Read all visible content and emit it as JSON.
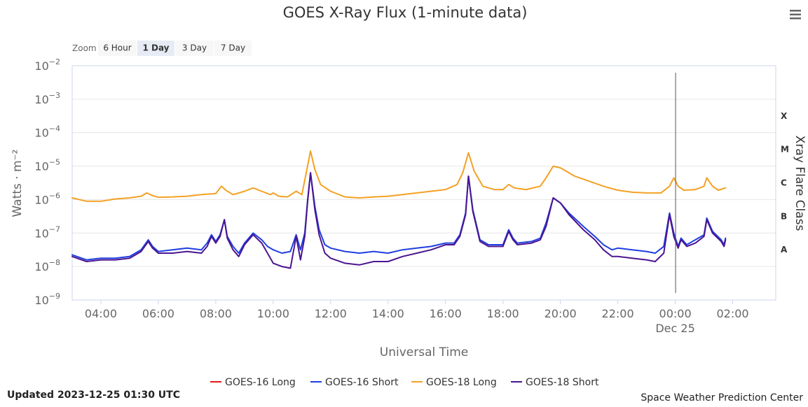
{
  "menu_icon": "hamburger-menu-icon",
  "zoom": {
    "label": "Zoom",
    "buttons": [
      "6 Hour",
      "1 Day",
      "3 Day",
      "7 Day"
    ],
    "active": "1 Day"
  },
  "footer": {
    "updated": "Updated 2023-12-25 01:30 UTC",
    "credit": "Space Weather Prediction Center"
  },
  "chart_data": {
    "type": "line",
    "title": "GOES X-Ray Flux (1-minute data)",
    "xlabel": "Universal Time",
    "ylabel": "Watts · m⁻²",
    "y2label": "Xray Flare Class",
    "yscale": "log",
    "xlim_hours": [
      3,
      27.5
    ],
    "ylim_exponents": [
      -9,
      -2
    ],
    "y_ticks": [
      {
        "exp": -2,
        "base": "10",
        "sup": "−2"
      },
      {
        "exp": -3,
        "base": "10",
        "sup": "−3"
      },
      {
        "exp": -4,
        "base": "10",
        "sup": "−4"
      },
      {
        "exp": -5,
        "base": "10",
        "sup": "−5"
      },
      {
        "exp": -6,
        "base": "10",
        "sup": "−6"
      },
      {
        "exp": -7,
        "base": "10",
        "sup": "−7"
      },
      {
        "exp": -8,
        "base": "10",
        "sup": "−8"
      },
      {
        "exp": -9,
        "base": "10",
        "sup": "−9"
      }
    ],
    "x_ticks": [
      {
        "hour": 4,
        "label": "04:00"
      },
      {
        "hour": 6,
        "label": "06:00"
      },
      {
        "hour": 8,
        "label": "08:00"
      },
      {
        "hour": 10,
        "label": "10:00"
      },
      {
        "hour": 12,
        "label": "12:00"
      },
      {
        "hour": 14,
        "label": "14:00"
      },
      {
        "hour": 16,
        "label": "16:00"
      },
      {
        "hour": 18,
        "label": "18:00"
      },
      {
        "hour": 20,
        "label": "20:00"
      },
      {
        "hour": 22,
        "label": "22:00"
      },
      {
        "hour": 24,
        "label": "00:00",
        "sublabel": "Dec 25"
      },
      {
        "hour": 26,
        "label": "02:00"
      }
    ],
    "flare_classes": [
      {
        "label": "X",
        "exp": -3.5
      },
      {
        "label": "M",
        "exp": -4.5
      },
      {
        "label": "C",
        "exp": -5.5
      },
      {
        "label": "B",
        "exp": -6.5
      },
      {
        "label": "A",
        "exp": -7.5
      }
    ],
    "day_boundary_hour": 24,
    "series": [
      {
        "name": "GOES-16 Long",
        "color": "#e41a1c",
        "points": []
      },
      {
        "name": "GOES-16 Short",
        "color": "#1f3fe0",
        "points": [
          [
            3,
            -7.65
          ],
          [
            3.5,
            -7.8
          ],
          [
            4,
            -7.75
          ],
          [
            4.5,
            -7.75
          ],
          [
            5,
            -7.7
          ],
          [
            5.4,
            -7.5
          ],
          [
            5.65,
            -7.2
          ],
          [
            5.8,
            -7.4
          ],
          [
            6,
            -7.55
          ],
          [
            6.5,
            -7.5
          ],
          [
            7,
            -7.45
          ],
          [
            7.5,
            -7.5
          ],
          [
            7.7,
            -7.3
          ],
          [
            7.85,
            -7.05
          ],
          [
            8,
            -7.25
          ],
          [
            8.15,
            -7.05
          ],
          [
            8.3,
            -6.6
          ],
          [
            8.4,
            -7.1
          ],
          [
            8.6,
            -7.4
          ],
          [
            8.8,
            -7.6
          ],
          [
            9,
            -7.3
          ],
          [
            9.3,
            -7.0
          ],
          [
            9.6,
            -7.2
          ],
          [
            9.8,
            -7.4
          ],
          [
            10,
            -7.5
          ],
          [
            10.3,
            -7.6
          ],
          [
            10.6,
            -7.55
          ],
          [
            10.8,
            -7.05
          ],
          [
            10.95,
            -7.5
          ],
          [
            11.1,
            -7.0
          ],
          [
            11.2,
            -6.0
          ],
          [
            11.3,
            -5.2
          ],
          [
            11.45,
            -6.2
          ],
          [
            11.6,
            -6.9
          ],
          [
            11.8,
            -7.35
          ],
          [
            12,
            -7.45
          ],
          [
            12.5,
            -7.55
          ],
          [
            13,
            -7.6
          ],
          [
            13.5,
            -7.55
          ],
          [
            14,
            -7.6
          ],
          [
            14.5,
            -7.5
          ],
          [
            15,
            -7.45
          ],
          [
            15.5,
            -7.4
          ],
          [
            16,
            -7.3
          ],
          [
            16.3,
            -7.3
          ],
          [
            16.5,
            -7.05
          ],
          [
            16.7,
            -6.4
          ],
          [
            16.8,
            -5.3
          ],
          [
            16.95,
            -6.3
          ],
          [
            17.2,
            -7.2
          ],
          [
            17.5,
            -7.35
          ],
          [
            18,
            -7.35
          ],
          [
            18.2,
            -6.9
          ],
          [
            18.35,
            -7.15
          ],
          [
            18.5,
            -7.3
          ],
          [
            19,
            -7.25
          ],
          [
            19.3,
            -7.15
          ],
          [
            19.5,
            -6.7
          ],
          [
            19.75,
            -5.95
          ],
          [
            20,
            -6.1
          ],
          [
            20.3,
            -6.4
          ],
          [
            20.8,
            -6.8
          ],
          [
            21.2,
            -7.1
          ],
          [
            21.5,
            -7.35
          ],
          [
            21.8,
            -7.5
          ],
          [
            22,
            -7.45
          ],
          [
            22.5,
            -7.5
          ],
          [
            23,
            -7.55
          ],
          [
            23.3,
            -7.6
          ],
          [
            23.6,
            -7.4
          ],
          [
            23.8,
            -6.4
          ],
          [
            23.95,
            -7.0
          ],
          [
            24.1,
            -7.4
          ],
          [
            24.2,
            -7.15
          ],
          [
            24.4,
            -7.35
          ],
          [
            24.7,
            -7.2
          ],
          [
            25,
            -7.05
          ],
          [
            25.1,
            -6.55
          ],
          [
            25.3,
            -6.95
          ],
          [
            25.6,
            -7.2
          ],
          [
            25.7,
            -7.35
          ],
          [
            25.75,
            -7.15
          ]
        ]
      },
      {
        "name": "GOES-18 Long",
        "color": "#f4a124",
        "points": [
          [
            3,
            -5.95
          ],
          [
            3.5,
            -6.05
          ],
          [
            4,
            -6.05
          ],
          [
            4.5,
            -5.98
          ],
          [
            5,
            -5.95
          ],
          [
            5.4,
            -5.9
          ],
          [
            5.6,
            -5.8
          ],
          [
            5.8,
            -5.88
          ],
          [
            6,
            -5.93
          ],
          [
            6.5,
            -5.92
          ],
          [
            7,
            -5.9
          ],
          [
            7.5,
            -5.85
          ],
          [
            8,
            -5.82
          ],
          [
            8.2,
            -5.6
          ],
          [
            8.35,
            -5.72
          ],
          [
            8.6,
            -5.85
          ],
          [
            9,
            -5.75
          ],
          [
            9.3,
            -5.65
          ],
          [
            9.6,
            -5.75
          ],
          [
            9.9,
            -5.85
          ],
          [
            10,
            -5.8
          ],
          [
            10.2,
            -5.9
          ],
          [
            10.5,
            -5.92
          ],
          [
            10.8,
            -5.75
          ],
          [
            11,
            -5.85
          ],
          [
            11.15,
            -5.2
          ],
          [
            11.3,
            -4.55
          ],
          [
            11.45,
            -5.1
          ],
          [
            11.65,
            -5.55
          ],
          [
            12,
            -5.75
          ],
          [
            12.5,
            -5.92
          ],
          [
            13,
            -5.95
          ],
          [
            13.5,
            -5.92
          ],
          [
            14,
            -5.9
          ],
          [
            14.5,
            -5.85
          ],
          [
            15,
            -5.8
          ],
          [
            15.5,
            -5.75
          ],
          [
            16,
            -5.7
          ],
          [
            16.4,
            -5.55
          ],
          [
            16.6,
            -5.2
          ],
          [
            16.8,
            -4.6
          ],
          [
            17,
            -5.15
          ],
          [
            17.3,
            -5.6
          ],
          [
            17.7,
            -5.7
          ],
          [
            18,
            -5.7
          ],
          [
            18.2,
            -5.55
          ],
          [
            18.4,
            -5.65
          ],
          [
            18.8,
            -5.7
          ],
          [
            19.3,
            -5.6
          ],
          [
            19.5,
            -5.35
          ],
          [
            19.75,
            -5.0
          ],
          [
            20,
            -5.05
          ],
          [
            20.5,
            -5.3
          ],
          [
            21,
            -5.45
          ],
          [
            21.5,
            -5.6
          ],
          [
            22,
            -5.72
          ],
          [
            22.5,
            -5.78
          ],
          [
            23,
            -5.8
          ],
          [
            23.5,
            -5.8
          ],
          [
            23.8,
            -5.6
          ],
          [
            23.95,
            -5.35
          ],
          [
            24.1,
            -5.6
          ],
          [
            24.3,
            -5.72
          ],
          [
            24.7,
            -5.7
          ],
          [
            25,
            -5.6
          ],
          [
            25.1,
            -5.35
          ],
          [
            25.3,
            -5.6
          ],
          [
            25.5,
            -5.72
          ],
          [
            25.75,
            -5.65
          ]
        ]
      },
      {
        "name": "GOES-18 Short",
        "color": "#4b1590",
        "points": [
          [
            3,
            -7.7
          ],
          [
            3.5,
            -7.85
          ],
          [
            4,
            -7.8
          ],
          [
            4.5,
            -7.8
          ],
          [
            5,
            -7.75
          ],
          [
            5.4,
            -7.55
          ],
          [
            5.65,
            -7.25
          ],
          [
            5.8,
            -7.45
          ],
          [
            6,
            -7.6
          ],
          [
            6.5,
            -7.6
          ],
          [
            7,
            -7.55
          ],
          [
            7.5,
            -7.6
          ],
          [
            7.7,
            -7.4
          ],
          [
            7.85,
            -7.1
          ],
          [
            8,
            -7.3
          ],
          [
            8.15,
            -7.1
          ],
          [
            8.3,
            -6.6
          ],
          [
            8.4,
            -7.15
          ],
          [
            8.6,
            -7.5
          ],
          [
            8.8,
            -7.7
          ],
          [
            9,
            -7.35
          ],
          [
            9.3,
            -7.05
          ],
          [
            9.6,
            -7.3
          ],
          [
            9.8,
            -7.6
          ],
          [
            10,
            -7.9
          ],
          [
            10.3,
            -8.0
          ],
          [
            10.6,
            -8.05
          ],
          [
            10.8,
            -7.1
          ],
          [
            10.95,
            -7.8
          ],
          [
            11.1,
            -7.1
          ],
          [
            11.2,
            -6.05
          ],
          [
            11.3,
            -5.2
          ],
          [
            11.45,
            -6.3
          ],
          [
            11.6,
            -7.05
          ],
          [
            11.8,
            -7.6
          ],
          [
            12,
            -7.75
          ],
          [
            12.5,
            -7.9
          ],
          [
            13,
            -7.95
          ],
          [
            13.5,
            -7.85
          ],
          [
            14,
            -7.85
          ],
          [
            14.5,
            -7.7
          ],
          [
            15,
            -7.6
          ],
          [
            15.5,
            -7.5
          ],
          [
            16,
            -7.35
          ],
          [
            16.3,
            -7.35
          ],
          [
            16.5,
            -7.1
          ],
          [
            16.7,
            -6.45
          ],
          [
            16.8,
            -5.3
          ],
          [
            16.95,
            -6.35
          ],
          [
            17.2,
            -7.25
          ],
          [
            17.5,
            -7.4
          ],
          [
            18,
            -7.4
          ],
          [
            18.2,
            -6.95
          ],
          [
            18.35,
            -7.2
          ],
          [
            18.5,
            -7.35
          ],
          [
            19,
            -7.3
          ],
          [
            19.3,
            -7.2
          ],
          [
            19.5,
            -6.8
          ],
          [
            19.75,
            -5.95
          ],
          [
            20,
            -6.1
          ],
          [
            20.3,
            -6.45
          ],
          [
            20.8,
            -6.9
          ],
          [
            21.2,
            -7.2
          ],
          [
            21.5,
            -7.5
          ],
          [
            21.8,
            -7.7
          ],
          [
            22,
            -7.7
          ],
          [
            22.5,
            -7.75
          ],
          [
            23,
            -7.8
          ],
          [
            23.3,
            -7.85
          ],
          [
            23.6,
            -7.6
          ],
          [
            23.8,
            -6.45
          ],
          [
            23.95,
            -7.1
          ],
          [
            24.1,
            -7.45
          ],
          [
            24.2,
            -7.2
          ],
          [
            24.4,
            -7.4
          ],
          [
            24.7,
            -7.3
          ],
          [
            25,
            -7.1
          ],
          [
            25.1,
            -6.6
          ],
          [
            25.3,
            -7.0
          ],
          [
            25.6,
            -7.25
          ],
          [
            25.7,
            -7.4
          ],
          [
            25.75,
            -7.2
          ]
        ]
      }
    ]
  }
}
